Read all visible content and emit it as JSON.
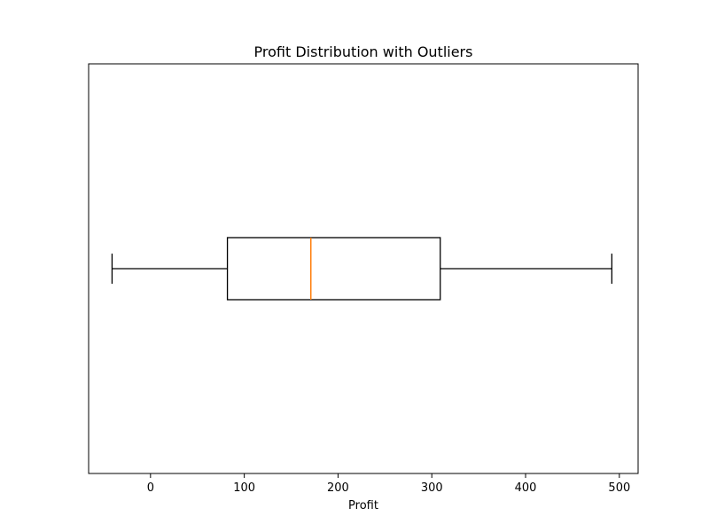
{
  "chart_data": {
    "type": "box",
    "title": "Profit Distribution with Outliers",
    "xlabel": "Profit",
    "ylabel": "",
    "orientation": "horizontal",
    "xlim": [
      -66,
      520
    ],
    "xticks": [
      0,
      100,
      200,
      300,
      400,
      500
    ],
    "xtick_labels": [
      "0",
      "100",
      "200",
      "300",
      "400",
      "500"
    ],
    "grid": false,
    "series": [
      {
        "whisker_low": -41,
        "q1": 82,
        "median": 171,
        "q3": 309,
        "whisker_high": 492,
        "outliers": []
      }
    ],
    "colors": {
      "box": "#000000",
      "median": "#ff7f0e",
      "background": "#ffffff"
    }
  }
}
